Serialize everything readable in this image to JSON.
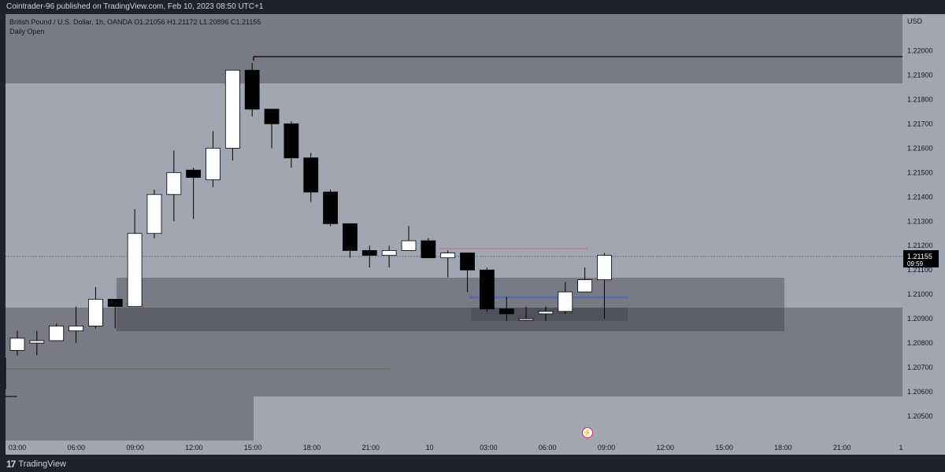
{
  "header": {
    "published": "Cointrader-96 published on TradingView.com, Feb 10, 2023 08:50 UTC+1"
  },
  "legend": {
    "symbol_line": "British Pound / U.S. Dollar, 1h, OANDA  O1.21056  H1.21172  L1.20896  C1.21155",
    "indicator": "Daily Open"
  },
  "footer": {
    "brand": "TradingView",
    "logo": "17"
  },
  "colors": {
    "background": "#a1a6b2",
    "bull": "#ffffff",
    "bear": "#000000",
    "zone_dark": "#787b86",
    "zone_darker": "#5d6068"
  },
  "chart_data": {
    "type": "candlestick",
    "currency": "USD",
    "ylim": [
      1.204,
      1.2215
    ],
    "y_ticks": [
      "1.22000",
      "1.21900",
      "1.21800",
      "1.21700",
      "1.21600",
      "1.21500",
      "1.21400",
      "1.21300",
      "1.21200",
      "1.21100",
      "1.21000",
      "1.20900",
      "1.20800",
      "1.20700",
      "1.20600",
      "1.20500"
    ],
    "x_ticks": [
      "03:00",
      "06:00",
      "09:00",
      "12:00",
      "15:00",
      "18:00",
      "21:00",
      "10",
      "03:00",
      "06:00",
      "09:00",
      "12:00",
      "15:00",
      "18:00",
      "21:00",
      "1"
    ],
    "last_price": "1.21155",
    "countdown": "09:59",
    "candles": [
      {
        "o": 1.2077,
        "h": 1.2085,
        "l": 1.2075,
        "c": 1.2082
      },
      {
        "o": 1.208,
        "h": 1.2085,
        "l": 1.2075,
        "c": 1.2081
      },
      {
        "o": 1.2081,
        "h": 1.2088,
        "l": 1.2081,
        "c": 1.2087
      },
      {
        "o": 1.2085,
        "h": 1.2095,
        "l": 1.208,
        "c": 1.2087
      },
      {
        "o": 1.2087,
        "h": 1.2103,
        "l": 1.2086,
        "c": 1.2098
      },
      {
        "o": 1.2098,
        "h": 1.2098,
        "l": 1.2086,
        "c": 1.2095
      },
      {
        "o": 1.2095,
        "h": 1.2135,
        "l": 1.2095,
        "c": 1.2125
      },
      {
        "o": 1.2125,
        "h": 1.2143,
        "l": 1.2123,
        "c": 1.2141
      },
      {
        "o": 1.2141,
        "h": 1.2159,
        "l": 1.213,
        "c": 1.215
      },
      {
        "o": 1.2151,
        "h": 1.2152,
        "l": 1.2131,
        "c": 1.2148
      },
      {
        "o": 1.2147,
        "h": 1.2167,
        "l": 1.2144,
        "c": 1.216
      },
      {
        "o": 1.216,
        "h": 1.2192,
        "l": 1.2155,
        "c": 1.2192
      },
      {
        "o": 1.2192,
        "h": 1.2195,
        "l": 1.2173,
        "c": 1.2176
      },
      {
        "o": 1.2176,
        "h": 1.2176,
        "l": 1.216,
        "c": 1.217
      },
      {
        "o": 1.217,
        "h": 1.2171,
        "l": 1.2152,
        "c": 1.2156
      },
      {
        "o": 1.2156,
        "h": 1.2158,
        "l": 1.2138,
        "c": 1.2142
      },
      {
        "o": 1.2142,
        "h": 1.2143,
        "l": 1.2128,
        "c": 1.2129
      },
      {
        "o": 1.2129,
        "h": 1.2129,
        "l": 1.2115,
        "c": 1.2118
      },
      {
        "o": 1.2118,
        "h": 1.212,
        "l": 1.2111,
        "c": 1.2116
      },
      {
        "o": 1.2116,
        "h": 1.212,
        "l": 1.2111,
        "c": 1.2118
      },
      {
        "o": 1.2118,
        "h": 1.2128,
        "l": 1.2118,
        "c": 1.2122
      },
      {
        "o": 1.2122,
        "h": 1.2123,
        "l": 1.2115,
        "c": 1.2115
      },
      {
        "o": 1.2115,
        "h": 1.2118,
        "l": 1.2107,
        "c": 1.2117
      },
      {
        "o": 1.2117,
        "h": 1.2117,
        "l": 1.2101,
        "c": 1.211
      },
      {
        "o": 1.211,
        "h": 1.2111,
        "l": 1.2093,
        "c": 1.2094
      },
      {
        "o": 1.2094,
        "h": 1.2099,
        "l": 1.2089,
        "c": 1.2092
      },
      {
        "o": 1.209,
        "h": 1.2095,
        "l": 1.2089,
        "c": 1.209
      },
      {
        "o": 1.2092,
        "h": 1.2095,
        "l": 1.2089,
        "c": 1.2093
      },
      {
        "o": 1.2093,
        "h": 1.2105,
        "l": 1.2092,
        "c": 1.2101
      },
      {
        "o": 1.2101,
        "h": 1.2111,
        "l": 1.2101,
        "c": 1.2106
      },
      {
        "o": 1.2106,
        "h": 1.2117,
        "l": 1.209,
        "c": 1.2116
      }
    ]
  }
}
